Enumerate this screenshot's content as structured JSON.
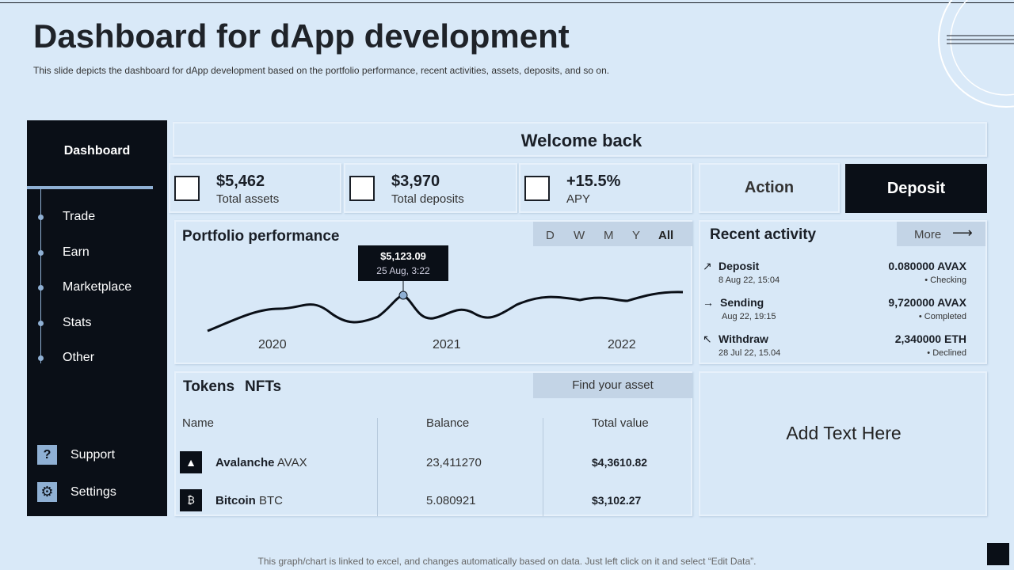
{
  "header": {
    "title": "Dashboard for dApp development",
    "subtitle": "This slide depicts the dashboard for dApp development based on the portfolio performance, recent activities, assets, deposits, and so on."
  },
  "sidebar": {
    "title": "Dashboard",
    "menu": [
      "Trade",
      "Earn",
      "Marketplace",
      "Stats",
      "Other"
    ],
    "footer": [
      "Support",
      "Settings"
    ]
  },
  "welcome": "Welcome back",
  "stats": [
    {
      "value": "$5,462",
      "label": "Total assets"
    },
    {
      "value": "$3,970",
      "label": "Total deposits"
    },
    {
      "value": "+15.5%",
      "label": "APY"
    }
  ],
  "actions": [
    "Action",
    "Deposit"
  ],
  "portfolio": {
    "title": "Portfolio performance",
    "ranges": [
      "D",
      "W",
      "M",
      "Y",
      "All"
    ],
    "tooltip": {
      "value": "$5,123.09",
      "time": "25 Aug, 3:22"
    },
    "x_labels": [
      "2020",
      "2021",
      "2022"
    ]
  },
  "activity": {
    "title": "Recent activity",
    "more": "More",
    "items": [
      {
        "type": "Deposit",
        "date": "8 Aug 22, 15:04",
        "amount": "0.080000 AVAX",
        "status": "Checking"
      },
      {
        "type": "Sending",
        "date": "Aug 22, 19:15",
        "amount": "9,720000 AVAX",
        "status": "Completed"
      },
      {
        "type": "Withdraw",
        "date": "28 Jul 22, 15.04",
        "amount": "2,340000 ETH",
        "status": "Declined"
      }
    ]
  },
  "tokens": {
    "tabs": [
      "Tokens",
      "NFTs"
    ],
    "search": "Find your asset",
    "columns": [
      "Name",
      "Balance",
      "Total value"
    ],
    "rows": [
      {
        "name": "Avalanche",
        "symbol": "AVAX",
        "balance": "23,411270",
        "total": "$4,3610.82"
      },
      {
        "name": "Bitcoin",
        "symbol": "BTC",
        "balance": "5.080921",
        "total": "$3,102.27"
      }
    ]
  },
  "note": "Add Text Here",
  "footer": "This graph/chart is linked to excel, and changes automatically based on data. Just left click on it and select “Edit Data”."
}
